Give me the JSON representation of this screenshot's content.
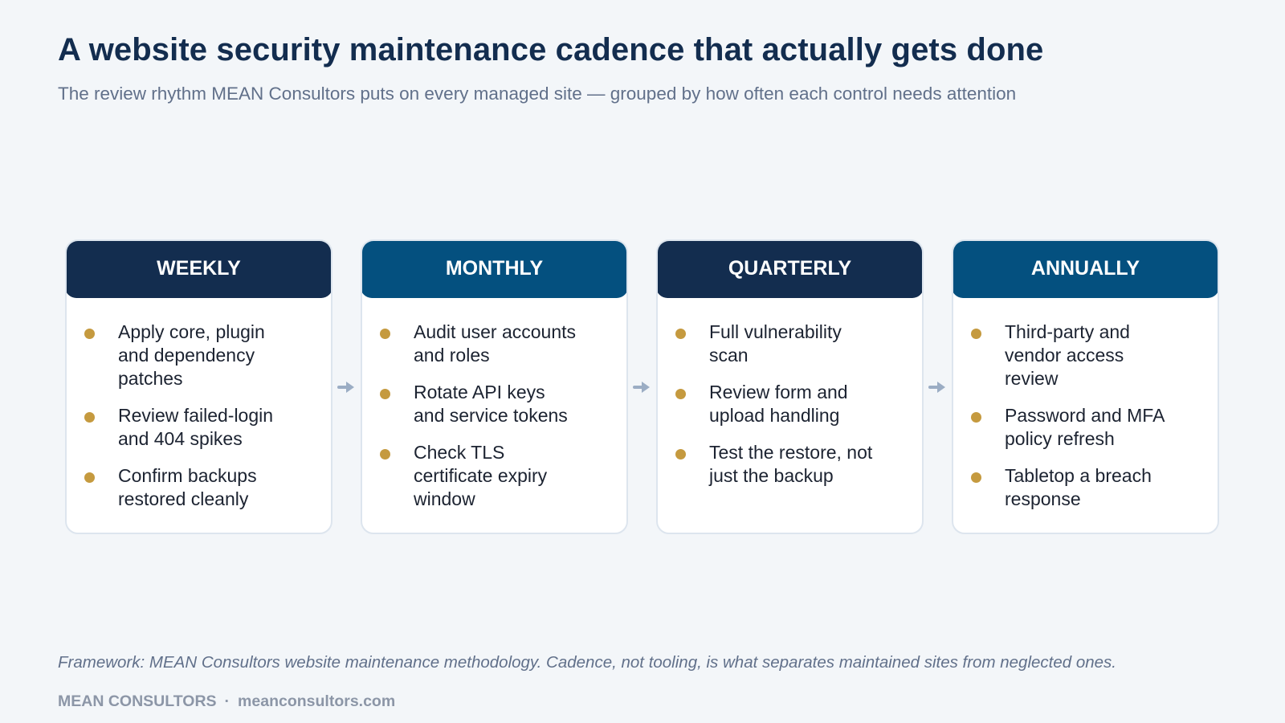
{
  "title": "A website security maintenance cadence that actually gets done",
  "subtitle": "The review rhythm MEAN Consultors puts on every managed site — grouped by how often each control needs attention",
  "colors": {
    "header_dark": "#132d4f",
    "header_blue": "#04507f",
    "bullet": "#c59a3f",
    "connector": "#9badc4"
  },
  "cards": [
    {
      "label": "WEEKLY",
      "items": [
        "Apply core, plugin and dependency patches",
        "Review failed-login and 404 spikes",
        "Confirm backups restored cleanly"
      ]
    },
    {
      "label": "MONTHLY",
      "items": [
        "Audit user accounts and roles",
        "Rotate API keys and service tokens",
        "Check TLS certificate expiry window"
      ]
    },
    {
      "label": "QUARTERLY",
      "items": [
        "Full vulnerability scan",
        "Review form and upload handling",
        "Test the restore, not just the backup"
      ]
    },
    {
      "label": "ANNUALLY",
      "items": [
        "Third-party and vendor access review",
        "Password and MFA policy refresh",
        "Tabletop a breach response"
      ]
    }
  ],
  "footnote": "Framework: MEAN Consultors website maintenance methodology. Cadence, not tooling, is what separates maintained sites from neglected ones.",
  "footer": {
    "brand": "MEAN CONSULTORS",
    "separator": "·",
    "website": "meanconsultors.com"
  }
}
